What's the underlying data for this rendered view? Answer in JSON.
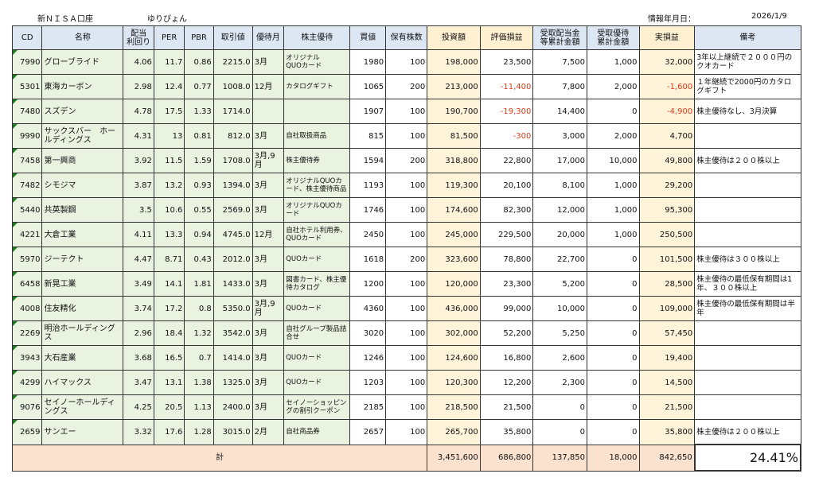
{
  "header": {
    "account": "新ＮＩＳＡ口座",
    "user": "ゆりぴょん",
    "info_label": "情報年月日：",
    "info_date": "2026/1/9"
  },
  "columns": [
    "CD",
    "名称",
    "配当\n利回り",
    "PER",
    "PBR",
    "取引値",
    "優待月",
    "株主優待",
    "買値",
    "保有株数",
    "投資額",
    "評価損益",
    "受取配当金\n等累計金額",
    "受取優待\n累計金額",
    "実損益",
    "備考"
  ],
  "rows": [
    {
      "cd": "7990",
      "name": "グローブライド",
      "yield": "4.06",
      "per": "11.7",
      "pbr": "0.86",
      "price": "2215.0",
      "month": "3月",
      "benefit": "オリジナル\nQUOカード",
      "buy": "1980",
      "shares": "100",
      "invest": "198,000",
      "eval": "23,500",
      "div": "7,500",
      "yutai": "1,000",
      "real": "32,000",
      "note": "3年以上継続で２０００円のクオカード"
    },
    {
      "cd": "5301",
      "name": "東海カーボン",
      "yield": "2.98",
      "per": "12.4",
      "pbr": "0.77",
      "price": "1008.0",
      "month": "12月",
      "benefit": "カタログギフト",
      "buy": "1065",
      "shares": "200",
      "invest": "213,000",
      "eval": "-11,400",
      "div": "7,800",
      "yutai": "2,000",
      "real": "-1,600",
      "note": "１年継続で2000円のカタログギフト"
    },
    {
      "cd": "7480",
      "name": "スズデン",
      "yield": "4.78",
      "per": "17.5",
      "pbr": "1.33",
      "price": "1714.0",
      "month": "",
      "benefit": "",
      "buy": "1907",
      "shares": "100",
      "invest": "190,700",
      "eval": "-19,300",
      "div": "14,400",
      "yutai": "0",
      "real": "-4,900",
      "note": "株主優待なし、3月決算"
    },
    {
      "cd": "9990",
      "name": "サックスバー　ホールディングス",
      "yield": "4.31",
      "per": "13",
      "pbr": "0.81",
      "price": "812.0",
      "month": "3月",
      "benefit": "自社取扱商品",
      "buy": "815",
      "shares": "100",
      "invest": "81,500",
      "eval": "-300",
      "div": "3,000",
      "yutai": "2,000",
      "real": "4,700",
      "note": ""
    },
    {
      "cd": "7458",
      "name": "第一興商",
      "yield": "3.92",
      "per": "11.5",
      "pbr": "1.59",
      "price": "1708.0",
      "month": "3月,9月",
      "benefit": "株主優待券",
      "buy": "1594",
      "shares": "200",
      "invest": "318,800",
      "eval": "22,800",
      "div": "17,000",
      "yutai": "10,000",
      "real": "49,800",
      "note": "株主優待は２００株以上"
    },
    {
      "cd": "7482",
      "name": "シモジマ",
      "yield": "3.87",
      "per": "13.2",
      "pbr": "0.93",
      "price": "1394.0",
      "month": "3月",
      "benefit": "オリジナルQUOカード、株主優待商品",
      "buy": "1193",
      "shares": "100",
      "invest": "119,300",
      "eval": "20,100",
      "div": "8,100",
      "yutai": "1,000",
      "real": "29,200",
      "note": ""
    },
    {
      "cd": "5440",
      "name": "共英製鋼",
      "yield": "3.5",
      "per": "10.6",
      "pbr": "0.55",
      "price": "2569.0",
      "month": "3月",
      "benefit": "オリジナルQUOカード",
      "buy": "1746",
      "shares": "100",
      "invest": "174,600",
      "eval": "82,300",
      "div": "12,000",
      "yutai": "1,000",
      "real": "95,300",
      "note": ""
    },
    {
      "cd": "4221",
      "name": "大倉工業",
      "yield": "4.11",
      "per": "13.3",
      "pbr": "0.94",
      "price": "4745.0",
      "month": "12月",
      "benefit": "自社ホテル利用券、QUOカード",
      "buy": "2450",
      "shares": "100",
      "invest": "245,000",
      "eval": "229,500",
      "div": "20,000",
      "yutai": "1,000",
      "real": "250,500",
      "note": ""
    },
    {
      "cd": "5970",
      "name": "ジーテクト",
      "yield": "4.47",
      "per": "8.71",
      "pbr": "0.43",
      "price": "2012.0",
      "month": "3月",
      "benefit": "QUOカード",
      "buy": "1618",
      "shares": "200",
      "invest": "323,600",
      "eval": "78,800",
      "div": "22,700",
      "yutai": "0",
      "real": "101,500",
      "note": "株主優待は３００株以上"
    },
    {
      "cd": "6458",
      "name": "新晃工業",
      "yield": "3.49",
      "per": "14.1",
      "pbr": "1.81",
      "price": "1433.0",
      "month": "3月",
      "benefit": "図書カード、株主優待カタログ",
      "buy": "1200",
      "shares": "100",
      "invest": "120,000",
      "eval": "23,300",
      "div": "5,200",
      "yutai": "0",
      "real": "28,500",
      "note": "株主優待の最低保有期間は1年、３００株以上"
    },
    {
      "cd": "4008",
      "name": "住友精化",
      "yield": "3.74",
      "per": "17.2",
      "pbr": "0.8",
      "price": "5350.0",
      "month": "3月,9月",
      "benefit": "QUOカード",
      "buy": "4360",
      "shares": "100",
      "invest": "436,000",
      "eval": "99,000",
      "div": "10,000",
      "yutai": "0",
      "real": "109,000",
      "note": "株主優待の最低保有期間は半年"
    },
    {
      "cd": "2269",
      "name": "明治ホールディングス",
      "yield": "2.96",
      "per": "18.4",
      "pbr": "1.32",
      "price": "3542.0",
      "month": "3月",
      "benefit": "自社グループ製品詰合せ",
      "buy": "3020",
      "shares": "100",
      "invest": "302,000",
      "eval": "52,200",
      "div": "5,250",
      "yutai": "0",
      "real": "57,450",
      "note": ""
    },
    {
      "cd": "3943",
      "name": "大石産業",
      "yield": "3.68",
      "per": "16.5",
      "pbr": "0.7",
      "price": "1414.0",
      "month": "3月",
      "benefit": "QUOカード",
      "buy": "1246",
      "shares": "100",
      "invest": "124,600",
      "eval": "16,800",
      "div": "2,600",
      "yutai": "0",
      "real": "19,400",
      "note": ""
    },
    {
      "cd": "4299",
      "name": "ハイマックス",
      "yield": "3.47",
      "per": "13.1",
      "pbr": "1.38",
      "price": "1325.0",
      "month": "3月",
      "benefit": "QUOカード",
      "buy": "1203",
      "shares": "100",
      "invest": "120,300",
      "eval": "12,200",
      "div": "2,300",
      "yutai": "0",
      "real": "14,500",
      "note": ""
    },
    {
      "cd": "9076",
      "name": "セイノーホールディングス",
      "yield": "4.25",
      "per": "20.5",
      "pbr": "1.13",
      "price": "2400.0",
      "month": "3月",
      "benefit": "セイノーショッピングの割引クーポン",
      "buy": "2185",
      "shares": "100",
      "invest": "218,500",
      "eval": "21,500",
      "div": "0",
      "yutai": "0",
      "real": "21,500",
      "note": ""
    },
    {
      "cd": "2659",
      "name": "サンエー",
      "yield": "3.32",
      "per": "17.6",
      "pbr": "1.28",
      "price": "3015.0",
      "month": "2月",
      "benefit": "自社商品券",
      "buy": "2657",
      "shares": "100",
      "invest": "265,700",
      "eval": "35,800",
      "div": "0",
      "yutai": "0",
      "real": "35,800",
      "note": "株主優待は２００株以上"
    }
  ],
  "totals": {
    "label": "計",
    "invest": "3,451,600",
    "eval": "686,800",
    "div": "137,850",
    "yutai": "18,000",
    "real": "842,650",
    "ratio": "24.41%"
  },
  "colors": {
    "header": "#dde6f3",
    "green": "#e9f3e0",
    "yellow": "#fff3da",
    "total": "#fbe2cf",
    "negative": "#e03a1a"
  }
}
